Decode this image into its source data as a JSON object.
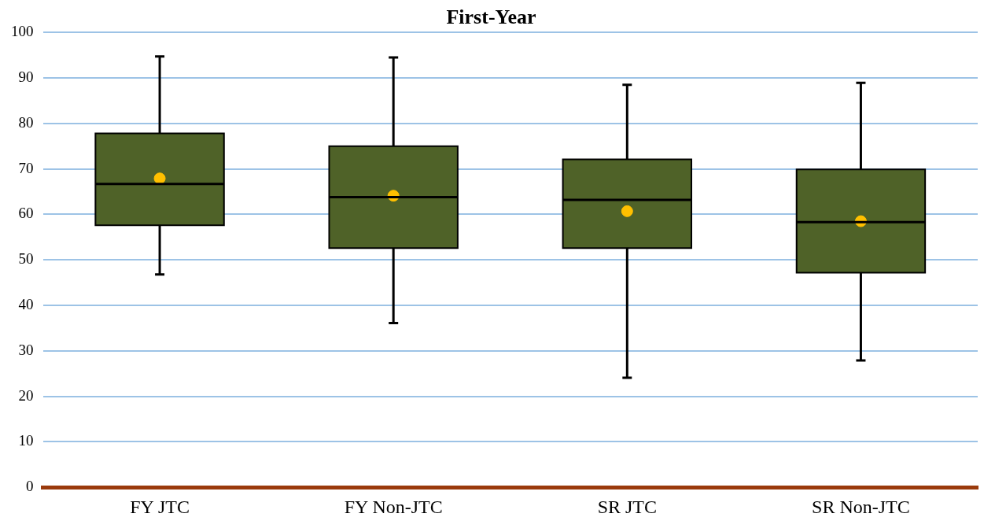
{
  "chart_data": {
    "type": "box",
    "title": "First-Year",
    "categories": [
      "FY JTC",
      "FY Non-JTC",
      "SR JTC",
      "SR Non-JTC"
    ],
    "series": [
      {
        "type": "box",
        "color": "#4f6228",
        "boxes": [
          {
            "low": 46.8,
            "q1": 57.6,
            "median": 66.7,
            "q3": 77.8,
            "high": 94.7
          },
          {
            "low": 36.1,
            "q1": 52.6,
            "median": 63.8,
            "q3": 75.0,
            "high": 94.5
          },
          {
            "low": 24.1,
            "q1": 52.6,
            "median": 63.2,
            "q3": 72.1,
            "high": 88.5
          },
          {
            "low": 27.9,
            "q1": 47.2,
            "median": 58.3,
            "q3": 69.9,
            "high": 88.9
          }
        ]
      },
      {
        "type": "scatter",
        "color": "#ffc000",
        "x": [
          "FY JTC",
          "FY Non-JTC",
          "SR JTC",
          "SR Non-JTC"
        ],
        "values": [
          67.9,
          64.1,
          60.7,
          58.5
        ]
      }
    ],
    "ylim": [
      0,
      100
    ],
    "yticks": [
      0,
      10,
      20,
      30,
      40,
      50,
      60,
      70,
      80,
      90,
      100
    ],
    "grid": "y",
    "legend": false,
    "marker": "circle"
  }
}
